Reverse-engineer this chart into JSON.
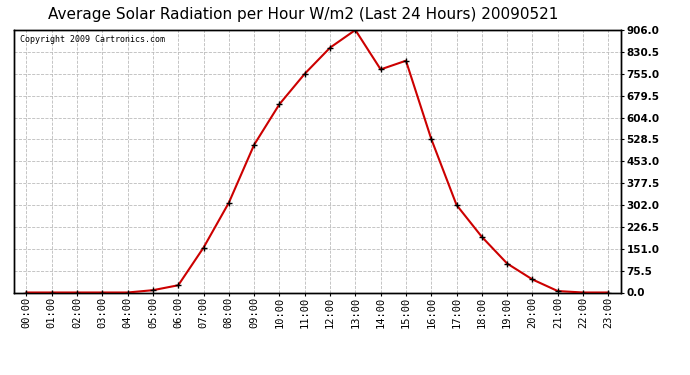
{
  "title": "Average Solar Radiation per Hour W/m2 (Last 24 Hours) 20090521",
  "copyright": "Copyright 2009 Cartronics.com",
  "x_labels": [
    "00:00",
    "01:00",
    "02:00",
    "03:00",
    "04:00",
    "05:00",
    "06:00",
    "07:00",
    "08:00",
    "09:00",
    "10:00",
    "11:00",
    "12:00",
    "13:00",
    "14:00",
    "15:00",
    "16:00",
    "17:00",
    "18:00",
    "19:00",
    "20:00",
    "21:00",
    "22:00",
    "23:00"
  ],
  "y_values": [
    0.0,
    0.0,
    0.0,
    0.0,
    0.0,
    8.0,
    25.0,
    155.0,
    310.0,
    510.0,
    650.0,
    755.0,
    845.0,
    906.0,
    770.0,
    800.0,
    530.0,
    302.0,
    192.0,
    100.0,
    45.0,
    5.0,
    0.0,
    0.0
  ],
  "line_color": "#cc0000",
  "marker": "+",
  "marker_color": "#000000",
  "marker_size": 5,
  "line_width": 1.5,
  "background_color": "#ffffff",
  "grid_color": "#bbbbbb",
  "y_min": 0.0,
  "y_max": 906.0,
  "y_ticks": [
    0.0,
    75.5,
    151.0,
    226.5,
    302.0,
    377.5,
    453.0,
    528.5,
    604.0,
    679.5,
    755.0,
    830.5,
    906.0
  ],
  "title_fontsize": 11,
  "copyright_fontsize": 6,
  "tick_fontsize": 7.5,
  "fig_width": 6.9,
  "fig_height": 3.75,
  "dpi": 100
}
